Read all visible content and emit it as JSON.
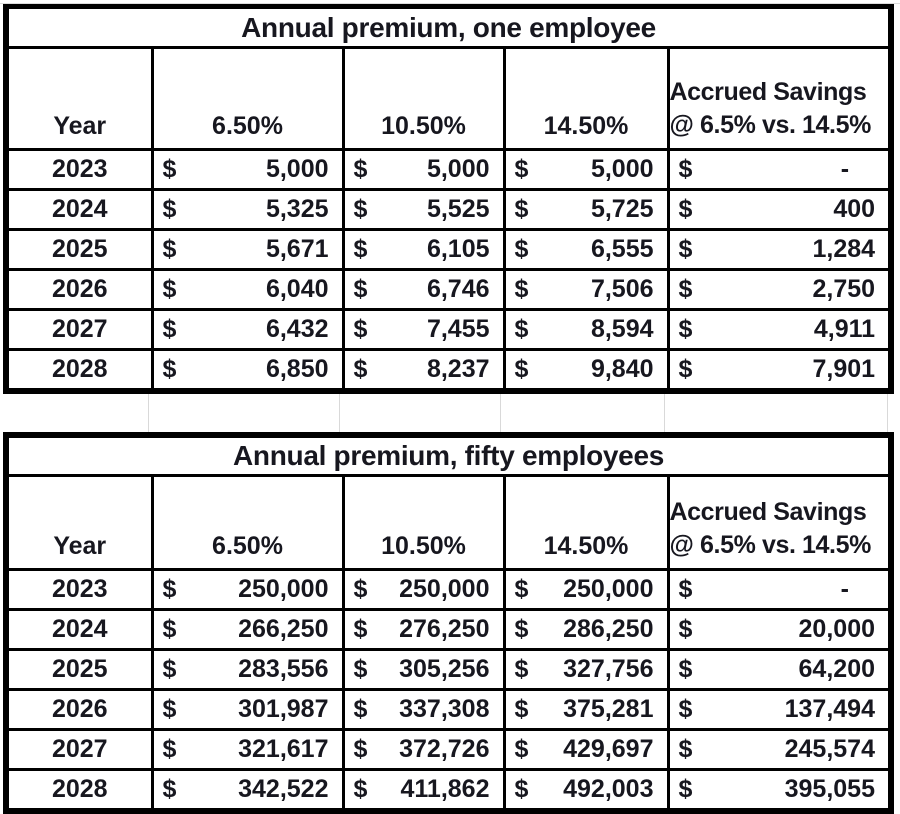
{
  "currency_symbol": "$",
  "colors": {
    "text": "#17171f",
    "border": "#000000",
    "gridline": "#d9d9d9",
    "background": "#ffffff"
  },
  "tables": [
    {
      "title": "Annual premium, one employee",
      "headers": {
        "year": "Year",
        "rate1": "6.50%",
        "rate2": "10.50%",
        "rate3": "14.50%",
        "savings_line1": "Accrued Savings",
        "savings_line2": "@ 6.5% vs. 14.5%"
      },
      "rows": [
        {
          "year": "2023",
          "r65": "5,000",
          "r105": "5,000",
          "r145": "5,000",
          "savings": "-"
        },
        {
          "year": "2024",
          "r65": "5,325",
          "r105": "5,525",
          "r145": "5,725",
          "savings": "400"
        },
        {
          "year": "2025",
          "r65": "5,671",
          "r105": "6,105",
          "r145": "6,555",
          "savings": "1,284"
        },
        {
          "year": "2026",
          "r65": "6,040",
          "r105": "6,746",
          "r145": "7,506",
          "savings": "2,750"
        },
        {
          "year": "2027",
          "r65": "6,432",
          "r105": "7,455",
          "r145": "8,594",
          "savings": "4,911"
        },
        {
          "year": "2028",
          "r65": "6,850",
          "r105": "8,237",
          "r145": "9,840",
          "savings": "7,901"
        }
      ]
    },
    {
      "title": "Annual premium, fifty employees",
      "headers": {
        "year": "Year",
        "rate1": "6.50%",
        "rate2": "10.50%",
        "rate3": "14.50%",
        "savings_line1": "Accrued Savings",
        "savings_line2": "@ 6.5% vs. 14.5%"
      },
      "rows": [
        {
          "year": "2023",
          "r65": "250,000",
          "r105": "250,000",
          "r145": "250,000",
          "savings": "-"
        },
        {
          "year": "2024",
          "r65": "266,250",
          "r105": "276,250",
          "r145": "286,250",
          "savings": "20,000"
        },
        {
          "year": "2025",
          "r65": "283,556",
          "r105": "305,256",
          "r145": "327,756",
          "savings": "64,200"
        },
        {
          "year": "2026",
          "r65": "301,987",
          "r105": "337,308",
          "r145": "375,281",
          "savings": "137,494"
        },
        {
          "year": "2027",
          "r65": "321,617",
          "r105": "372,726",
          "r145": "429,697",
          "savings": "245,574"
        },
        {
          "year": "2028",
          "r65": "342,522",
          "r105": "411,862",
          "r145": "492,003",
          "savings": "395,055"
        }
      ]
    }
  ]
}
